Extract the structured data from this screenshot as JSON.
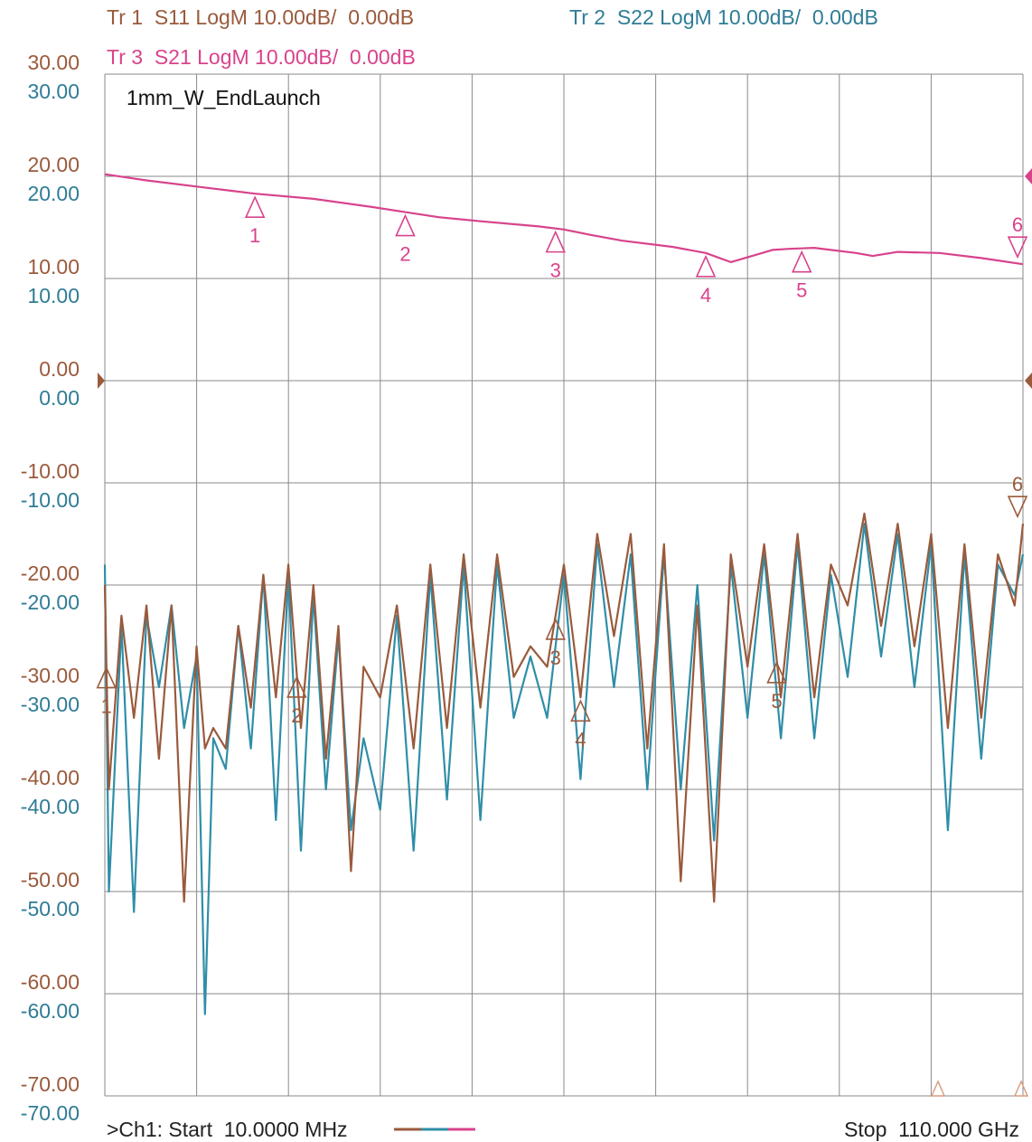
{
  "chart_data": {
    "type": "line",
    "title": "1mm_W_EndLaunch",
    "x_start_label": ">Ch1: Start  10.0000 MHz",
    "x_stop_label": "Stop  110.000 GHz",
    "x_unit": "GHz",
    "xlim": [
      0.01,
      110
    ],
    "ylim": [
      -70,
      30
    ],
    "y_ticks": [
      "30.00",
      "20.00",
      "10.00",
      "0.00",
      "-10.00",
      "-20.00",
      "-30.00",
      "-40.00",
      "-50.00",
      "-60.00",
      "-70.00"
    ],
    "grid": true,
    "traces": [
      {
        "id": "tr1",
        "label": "Tr 1  S11 LogM 10.00dB/  0.00dB",
        "color": "#9a5a3c"
      },
      {
        "id": "tr2",
        "label": "Tr 2  S22 LogM 10.00dB/  0.00dB",
        "color": "#2f8ea8"
      },
      {
        "id": "tr3",
        "label": "Tr 3  S21 LogM 10.00dB/  0.00dB",
        "color": "#d8438c"
      }
    ],
    "series": [
      {
        "trace": "tr3",
        "x": [
          0.01,
          5,
          11,
          18,
          25,
          32,
          36,
          40,
          45,
          52,
          55,
          58,
          62,
          68,
          72,
          75,
          80,
          82,
          85,
          90,
          92,
          95,
          100,
          105,
          110
        ],
        "values": [
          20.2,
          19.6,
          19.0,
          18.3,
          17.8,
          17.0,
          16.5,
          16.0,
          15.6,
          15.1,
          14.8,
          14.3,
          13.7,
          13.1,
          12.5,
          11.6,
          12.8,
          12.9,
          13.0,
          12.5,
          12.2,
          12.6,
          12.5,
          12.0,
          11.4
        ]
      },
      {
        "trace": "tr1",
        "x": [
          0.01,
          0.5,
          2,
          3.5,
          5,
          6.5,
          8,
          9.5,
          11,
          12,
          13,
          14.5,
          16,
          17.5,
          19,
          20.5,
          22,
          23.5,
          25,
          26.5,
          28,
          29.5,
          31,
          33,
          35,
          37,
          39,
          41,
          43,
          45,
          47,
          49,
          51,
          53,
          55,
          57,
          59,
          61,
          63,
          65,
          67,
          69,
          71,
          73,
          75,
          77,
          79,
          81,
          83,
          85,
          87,
          89,
          91,
          93,
          95,
          97,
          99,
          101,
          103,
          105,
          107,
          109,
          110
        ],
        "values": [
          -20,
          -40,
          -23,
          -33,
          -22,
          -37,
          -22,
          -51,
          -26,
          -36,
          -34,
          -36,
          -24,
          -32,
          -19,
          -31,
          -18,
          -34,
          -20,
          -37,
          -24,
          -48,
          -28,
          -31,
          -22,
          -36,
          -18,
          -34,
          -17,
          -32,
          -17,
          -29,
          -26,
          -28,
          -18,
          -31,
          -15,
          -25,
          -15,
          -36,
          -16,
          -49,
          -22,
          -51,
          -17,
          -28,
          -16,
          -31,
          -15,
          -31,
          -18,
          -22,
          -13,
          -24,
          -14,
          -26,
          -15,
          -34,
          -16,
          -33,
          -17,
          -22,
          -14
        ]
      },
      {
        "trace": "tr2",
        "x": [
          0.01,
          0.5,
          2,
          3.5,
          5,
          6.5,
          8,
          9.5,
          11,
          12,
          13,
          14.5,
          16,
          17.5,
          19,
          20.5,
          22,
          23.5,
          25,
          26.5,
          28,
          29.5,
          31,
          33,
          35,
          37,
          39,
          41,
          43,
          45,
          47,
          49,
          51,
          53,
          55,
          57,
          59,
          61,
          63,
          65,
          67,
          69,
          71,
          73,
          75,
          77,
          79,
          81,
          83,
          85,
          87,
          89,
          91,
          93,
          95,
          97,
          99,
          101,
          103,
          105,
          107,
          109,
          110
        ],
        "values": [
          -18,
          -50,
          -24,
          -52,
          -23,
          -30,
          -22,
          -34,
          -27,
          -62,
          -35,
          -38,
          -24,
          -36,
          -19,
          -43,
          -19,
          -46,
          -21,
          -40,
          -25,
          -44,
          -35,
          -42,
          -23,
          -46,
          -19,
          -41,
          -18,
          -43,
          -18,
          -33,
          -27,
          -33,
          -19,
          -39,
          -16,
          -30,
          -17,
          -40,
          -17,
          -40,
          -20,
          -45,
          -18,
          -33,
          -17,
          -35,
          -16,
          -35,
          -19,
          -29,
          -14,
          -27,
          -15,
          -30,
          -16,
          -44,
          -17,
          -37,
          -18,
          -21,
          -17
        ]
      }
    ],
    "markers": [
      {
        "trace": "tr3",
        "label": "1",
        "x": 18
      },
      {
        "trace": "tr3",
        "label": "2",
        "x": 36
      },
      {
        "trace": "tr3",
        "label": "3",
        "x": 54
      },
      {
        "trace": "tr3",
        "label": "4",
        "x": 72
      },
      {
        "trace": "tr3",
        "label": "5",
        "x": 83.5
      },
      {
        "trace": "tr3",
        "label": "6",
        "x": 110
      },
      {
        "trace": "tr1",
        "label": "1",
        "x": 0.2
      },
      {
        "trace": "tr1",
        "label": "2",
        "x": 23
      },
      {
        "trace": "tr1",
        "label": "3",
        "x": 54
      },
      {
        "trace": "tr1",
        "label": "4",
        "x": 57
      },
      {
        "trace": "tr1",
        "label": "5",
        "x": 80.5
      },
      {
        "trace": "tr1",
        "label": "6",
        "x": 110
      }
    ]
  }
}
